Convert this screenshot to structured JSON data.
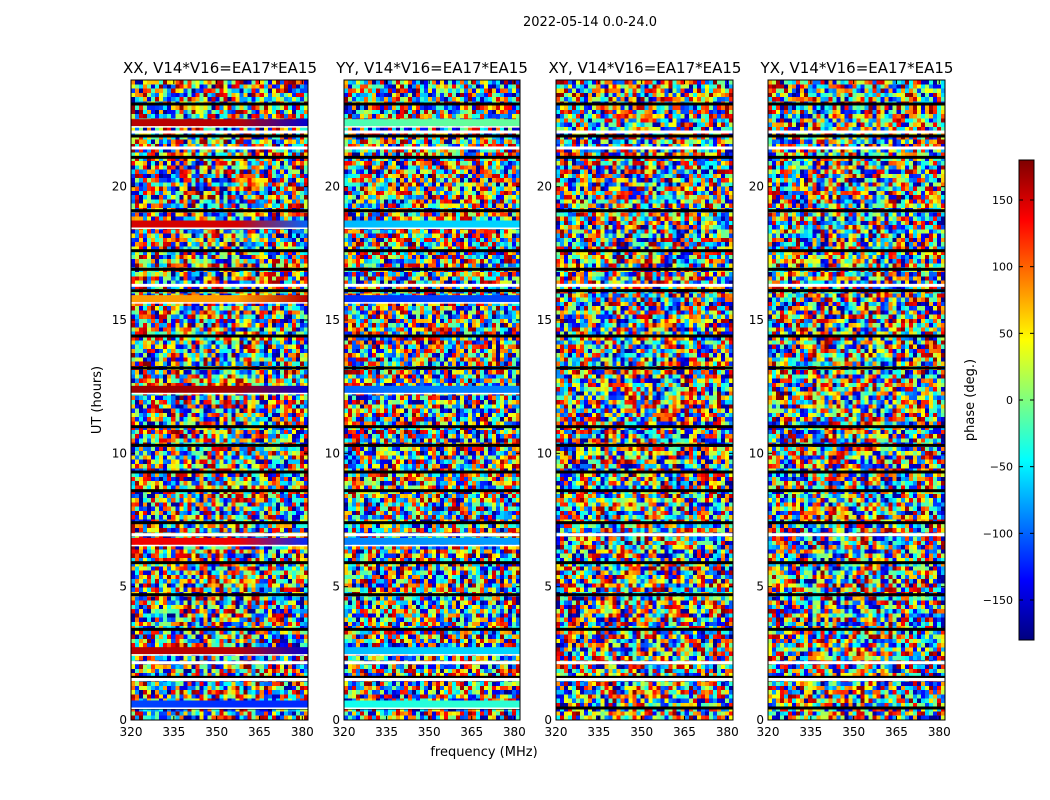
{
  "figure": {
    "suptitle": "2022-05-14 0.0-24.0",
    "xlabel": "frequency (MHz)",
    "ylabel": "UT (hours)"
  },
  "colorbar": {
    "label": "phase (deg.)",
    "ticks": [
      150,
      100,
      50,
      0,
      -50,
      -100,
      -150
    ],
    "tick_labels": [
      "150",
      "100",
      "50",
      "0",
      "−50",
      "−100",
      "−150"
    ],
    "range": [
      -180,
      180
    ],
    "colormap": "jet"
  },
  "chart_data": [
    {
      "type": "heatmap",
      "title": "XX, V14*V16=EA17*EA15",
      "xlabel": "frequency (MHz)",
      "ylabel": "UT (hours)",
      "xlim": [
        320,
        382
      ],
      "ylim": [
        0,
        24
      ],
      "xticks": [
        320,
        335,
        350,
        365,
        380
      ],
      "xtick_labels": [
        "320",
        "335",
        "350",
        "365",
        "380"
      ],
      "yticks": [
        0,
        5,
        10,
        15,
        20
      ],
      "ytick_labels": [
        "0",
        "5",
        "10",
        "15",
        "20"
      ],
      "value_label": "phase (deg.)",
      "coherent_bands": [
        {
          "t": 22.4,
          "phase_start": 160,
          "phase_end": -150
        },
        {
          "t": 18.6,
          "phase_start": 150,
          "phase_end": -100
        },
        {
          "t": 15.8,
          "phase_start": 80,
          "phase_end": 160
        },
        {
          "t": 12.4,
          "phase_start": 170,
          "phase_end": -150
        },
        {
          "t": 6.7,
          "phase_start": 140,
          "phase_end": -120
        },
        {
          "t": 2.6,
          "phase_start": 160,
          "phase_end": -150
        },
        {
          "t": 0.6,
          "phase_start": -110,
          "phase_end": -120
        }
      ]
    },
    {
      "type": "heatmap",
      "title": "YY, V14*V16=EA17*EA15",
      "xlabel": "frequency (MHz)",
      "ylabel": "UT (hours)",
      "xlim": [
        320,
        382
      ],
      "ylim": [
        0,
        24
      ],
      "xticks": [
        320,
        335,
        350,
        365,
        380
      ],
      "xtick_labels": [
        "320",
        "335",
        "350",
        "365",
        "380"
      ],
      "yticks": [
        0,
        5,
        10,
        15,
        20
      ],
      "ytick_labels": [
        "0",
        "5",
        "10",
        "15",
        "20"
      ],
      "value_label": "phase (deg.)",
      "coherent_bands": [
        {
          "t": 22.4,
          "phase_start": -20,
          "phase_end": -10
        },
        {
          "t": 18.6,
          "phase_start": -70,
          "phase_end": -60
        },
        {
          "t": 15.8,
          "phase_start": -120,
          "phase_end": -110
        },
        {
          "t": 12.4,
          "phase_start": -100,
          "phase_end": -90
        },
        {
          "t": 6.7,
          "phase_start": -90,
          "phase_end": -80
        },
        {
          "t": 2.6,
          "phase_start": -70,
          "phase_end": -60
        },
        {
          "t": 0.6,
          "phase_start": -40,
          "phase_end": -30
        }
      ]
    },
    {
      "type": "heatmap",
      "title": "XY, V14*V16=EA17*EA15",
      "xlabel": "frequency (MHz)",
      "ylabel": "UT (hours)",
      "xlim": [
        320,
        382
      ],
      "ylim": [
        0,
        24
      ],
      "xticks": [
        320,
        335,
        350,
        365,
        380
      ],
      "xtick_labels": [
        "320",
        "335",
        "350",
        "365",
        "380"
      ],
      "yticks": [
        0,
        5,
        10,
        15,
        20
      ],
      "ytick_labels": [
        "0",
        "5",
        "10",
        "15",
        "20"
      ],
      "value_label": "phase (deg.)",
      "coherent_bands": []
    },
    {
      "type": "heatmap",
      "title": "YX, V14*V16=EA17*EA15",
      "xlabel": "frequency (MHz)",
      "ylabel": "UT (hours)",
      "xlim": [
        320,
        382
      ],
      "ylim": [
        0,
        24
      ],
      "xticks": [
        320,
        335,
        350,
        365,
        380
      ],
      "xtick_labels": [
        "320",
        "335",
        "350",
        "365",
        "380"
      ],
      "yticks": [
        0,
        5,
        10,
        15,
        20
      ],
      "ytick_labels": [
        "0",
        "5",
        "10",
        "15",
        "20"
      ],
      "value_label": "phase (deg.)",
      "coherent_bands": []
    }
  ],
  "flagged_gaps_hours": [
    0.45,
    1.6,
    3.4,
    4.7,
    5.9,
    7.4,
    8.6,
    9.3,
    10.3,
    11.0,
    13.2,
    14.4,
    16.1,
    16.9,
    17.6,
    19.1,
    21.1,
    21.9,
    23.1
  ],
  "blank_gaps_hours": [
    1.52,
    2.15,
    6.95,
    16.3,
    21.45,
    22.05
  ]
}
